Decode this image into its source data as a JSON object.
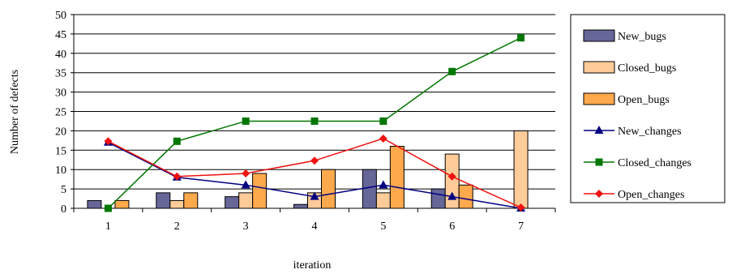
{
  "chart_data": {
    "type": "bar",
    "title": "",
    "xlabel": "iteration",
    "ylabel": "Number of defects",
    "ylim": [
      0,
      50
    ],
    "yticks": [
      0,
      5,
      10,
      15,
      20,
      25,
      30,
      35,
      40,
      45,
      50
    ],
    "categories": [
      "1",
      "2",
      "3",
      "4",
      "5",
      "6",
      "7"
    ],
    "grid": true,
    "legend_position": "right",
    "bar_series": [
      {
        "name": "New_bugs",
        "color": "#666699",
        "values": [
          2,
          4,
          3,
          1,
          10,
          5,
          0
        ]
      },
      {
        "name": "Closed_bugs",
        "color": "#ffcc99",
        "values": [
          0,
          2,
          4,
          4,
          4,
          14,
          20
        ]
      },
      {
        "name": "Open_bugs",
        "color": "#ffa94d",
        "values": [
          2,
          4,
          9,
          10,
          16,
          6,
          0
        ]
      }
    ],
    "line_series": [
      {
        "name": "New_changes",
        "color": "#000080",
        "marker": "triangle",
        "values": [
          17,
          8,
          6,
          3,
          6,
          3,
          0
        ]
      },
      {
        "name": "Closed_changes",
        "color": "#007700",
        "marker": "square",
        "values": [
          0,
          17.3,
          22.5,
          22.5,
          22.5,
          35.3,
          44
        ]
      },
      {
        "name": "Open_changes",
        "color": "#ee1111",
        "marker": "diamond",
        "values": [
          17.3,
          8.2,
          9,
          12.3,
          18,
          8.2,
          0.2
        ]
      }
    ]
  }
}
